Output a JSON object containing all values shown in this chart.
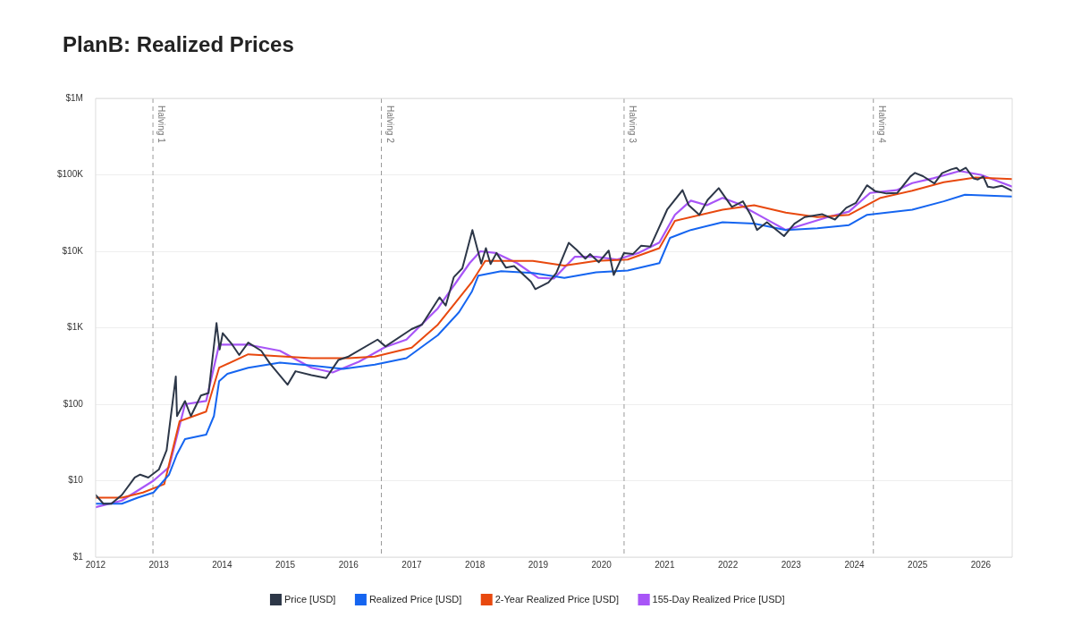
{
  "chart_data": {
    "type": "line",
    "title": "PlanB: Realized Prices",
    "log": "y",
    "grid": "y",
    "legend": "bottom",
    "marker": "none",
    "line_style": "solid",
    "xlim": [
      "2012-01-01",
      "2026-07-01"
    ],
    "xticks": [
      "2012",
      "2013",
      "2014",
      "2015",
      "2016",
      "2017",
      "2018",
      "2019",
      "2020",
      "2021",
      "2022",
      "2023",
      "2024",
      "2025",
      "2026"
    ],
    "ylim": [
      1,
      1000000
    ],
    "yticks": [
      {
        "value": 1,
        "label": "$1"
      },
      {
        "value": 10,
        "label": "$10"
      },
      {
        "value": 100,
        "label": "$100"
      },
      {
        "value": 1000,
        "label": "$1K"
      },
      {
        "value": 10000,
        "label": "$10K"
      },
      {
        "value": 100000,
        "label": "$100K"
      },
      {
        "value": 1000000,
        "label": "$1M"
      }
    ],
    "ref_lines": [
      {
        "axis": "x",
        "value": "2012-11-28",
        "label": "Halving 1",
        "color": "#999999",
        "line_style": "dashed"
      },
      {
        "axis": "x",
        "value": "2016-07-09",
        "label": "Halving 2",
        "color": "#999999",
        "line_style": "dashed"
      },
      {
        "axis": "x",
        "value": "2020-05-11",
        "label": "Halving 3",
        "color": "#999999",
        "line_style": "dashed"
      },
      {
        "axis": "x",
        "value": "2024-04-20",
        "label": "Halving 4",
        "color": "#999999",
        "line_style": "dashed"
      }
    ],
    "series": [
      {
        "name": "Price [USD]",
        "color": "#2d3748",
        "x": [
          "2012-01-01",
          "2012-02-15",
          "2012-04-01",
          "2012-06-01",
          "2012-08-15",
          "2012-09-15",
          "2012-11-01",
          "2013-01-01",
          "2013-02-15",
          "2013-04-09",
          "2013-04-16",
          "2013-06-01",
          "2013-07-05",
          "2013-09-01",
          "2013-10-15",
          "2013-11-30",
          "2013-12-18",
          "2014-01-05",
          "2014-03-01",
          "2014-04-10",
          "2014-06-01",
          "2014-08-15",
          "2014-10-05",
          "2015-01-14",
          "2015-03-01",
          "2015-06-01",
          "2015-08-25",
          "2015-11-04",
          "2016-01-01",
          "2016-06-17",
          "2016-08-02",
          "2016-12-31",
          "2017-03-01",
          "2017-06-10",
          "2017-07-16",
          "2017-09-01",
          "2017-10-20",
          "2017-12-17",
          "2018-02-06",
          "2018-03-05",
          "2018-04-01",
          "2018-05-05",
          "2018-06-29",
          "2018-08-15",
          "2018-11-20",
          "2018-12-15",
          "2019-03-01",
          "2019-04-15",
          "2019-06-26",
          "2019-08-10",
          "2019-09-30",
          "2019-10-27",
          "2019-12-17",
          "2020-02-12",
          "2020-03-12",
          "2020-05-10",
          "2020-07-01",
          "2020-08-17",
          "2020-10-10",
          "2020-12-27",
          "2021-01-15",
          "2021-04-14",
          "2021-05-20",
          "2021-07-20",
          "2021-09-06",
          "2021-11-09",
          "2022-01-24",
          "2022-03-29",
          "2022-05-12",
          "2022-06-18",
          "2022-08-14",
          "2022-11-21",
          "2023-01-20",
          "2023-03-20",
          "2023-06-30",
          "2023-09-11",
          "2023-11-15",
          "2024-01-10",
          "2024-03-14",
          "2024-05-01",
          "2024-07-05",
          "2024-09-06",
          "2024-11-20",
          "2024-12-17",
          "2025-02-01",
          "2025-04-08",
          "2025-05-22",
          "2025-07-14",
          "2025-08-14",
          "2025-09-01",
          "2025-10-06",
          "2025-11-20",
          "2025-12-15",
          "2026-01-15",
          "2026-02-10",
          "2026-03-15",
          "2026-05-01",
          "2026-07-01"
        ],
        "values": [
          6.5,
          5,
          5,
          6.5,
          11,
          12,
          11,
          14,
          25,
          230,
          70,
          110,
          70,
          130,
          140,
          1150,
          520,
          850,
          600,
          440,
          640,
          500,
          340,
          180,
          270,
          240,
          220,
          380,
          420,
          700,
          570,
          960,
          1100,
          2500,
          1950,
          4600,
          6000,
          19000,
          6900,
          11000,
          6800,
          9500,
          6100,
          6400,
          4000,
          3200,
          3900,
          5200,
          12900,
          10500,
          8000,
          9200,
          7200,
          10200,
          4900,
          9500,
          9200,
          11800,
          11500,
          28000,
          35000,
          63000,
          40000,
          30000,
          47000,
          67000,
          38000,
          45000,
          30000,
          19000,
          24000,
          15800,
          23000,
          28000,
          30500,
          26000,
          37000,
          43000,
          73000,
          61000,
          57000,
          58000,
          95000,
          106000,
          96000,
          77000,
          105000,
          118000,
          123000,
          112000,
          124000,
          90000,
          87000,
          95000,
          70000,
          68000,
          72000,
          62000
        ]
      },
      {
        "name": "Realized Price [USD]",
        "color": "#1565f0",
        "x": [
          "2012-01-01",
          "2012-06-01",
          "2012-09-01",
          "2012-12-01",
          "2013-03-01",
          "2013-04-15",
          "2013-06-01",
          "2013-10-01",
          "2013-11-15",
          "2013-12-15",
          "2014-02-01",
          "2014-06-01",
          "2014-12-01",
          "2015-06-01",
          "2015-12-01",
          "2016-06-01",
          "2016-12-01",
          "2017-06-01",
          "2017-10-01",
          "2017-12-15",
          "2018-01-20",
          "2018-06-01",
          "2018-12-01",
          "2019-06-01",
          "2019-12-01",
          "2020-06-01",
          "2020-12-01",
          "2021-02-01",
          "2021-06-01",
          "2021-12-01",
          "2022-06-01",
          "2022-12-01",
          "2023-06-01",
          "2023-12-01",
          "2024-03-15",
          "2024-12-01",
          "2025-06-01",
          "2025-10-01",
          "2026-07-01"
        ],
        "values": [
          5,
          5,
          6,
          7,
          12,
          22,
          35,
          40,
          70,
          200,
          250,
          300,
          350,
          320,
          290,
          330,
          400,
          800,
          1600,
          3000,
          4800,
          5500,
          5200,
          4500,
          5300,
          5600,
          7000,
          15000,
          19000,
          24000,
          23000,
          19000,
          20000,
          22000,
          30000,
          35000,
          45000,
          55000,
          52000
        ]
      },
      {
        "name": "2-Year Realized Price [USD]",
        "color": "#e8490f",
        "x": [
          "2012-01-01",
          "2012-06-01",
          "2012-10-01",
          "2013-02-01",
          "2013-05-01",
          "2013-10-01",
          "2013-12-15",
          "2014-06-01",
          "2015-01-01",
          "2015-06-01",
          "2016-01-01",
          "2016-06-01",
          "2017-01-01",
          "2017-06-01",
          "2017-12-15",
          "2018-03-01",
          "2018-12-01",
          "2019-06-01",
          "2019-12-01",
          "2020-06-01",
          "2020-12-01",
          "2021-03-01",
          "2021-12-01",
          "2022-06-01",
          "2022-12-01",
          "2023-06-01",
          "2023-12-01",
          "2024-06-01",
          "2024-12-01",
          "2025-06-01",
          "2025-12-01",
          "2026-07-01"
        ],
        "values": [
          6,
          6,
          7,
          9,
          60,
          80,
          300,
          450,
          420,
          400,
          400,
          420,
          550,
          1100,
          4000,
          7500,
          7500,
          6500,
          7500,
          7800,
          11000,
          25000,
          35000,
          40000,
          32000,
          28000,
          30000,
          50000,
          62000,
          80000,
          92000,
          88000
        ]
      },
      {
        "name": "155-Day Realized Price [USD]",
        "color": "#a855f7",
        "x": [
          "2012-01-01",
          "2012-06-01",
          "2012-12-01",
          "2013-03-01",
          "2013-06-01",
          "2013-10-01",
          "2013-12-15",
          "2014-03-01",
          "2014-06-01",
          "2014-12-01",
          "2015-06-01",
          "2015-10-01",
          "2016-03-01",
          "2016-08-01",
          "2016-12-01",
          "2017-06-01",
          "2017-12-01",
          "2018-02-01",
          "2018-05-01",
          "2018-09-01",
          "2019-01-01",
          "2019-04-01",
          "2019-08-01",
          "2019-12-01",
          "2020-04-01",
          "2020-08-01",
          "2020-12-01",
          "2021-03-01",
          "2021-06-01",
          "2021-09-01",
          "2021-12-01",
          "2022-03-01",
          "2022-08-01",
          "2022-12-01",
          "2023-04-01",
          "2023-08-01",
          "2023-12-01",
          "2024-04-01",
          "2024-09-01",
          "2024-12-01",
          "2025-04-01",
          "2025-09-01",
          "2026-01-01",
          "2026-07-01"
        ],
        "values": [
          4.5,
          5.5,
          10,
          15,
          100,
          110,
          600,
          600,
          600,
          500,
          300,
          260,
          360,
          560,
          700,
          1800,
          7000,
          10000,
          9500,
          7000,
          4500,
          4400,
          8500,
          8500,
          7800,
          9500,
          13000,
          30000,
          46000,
          40000,
          50000,
          42000,
          27000,
          19000,
          23000,
          28000,
          33000,
          58000,
          63000,
          78000,
          90000,
          112000,
          100000,
          70000
        ]
      }
    ]
  }
}
